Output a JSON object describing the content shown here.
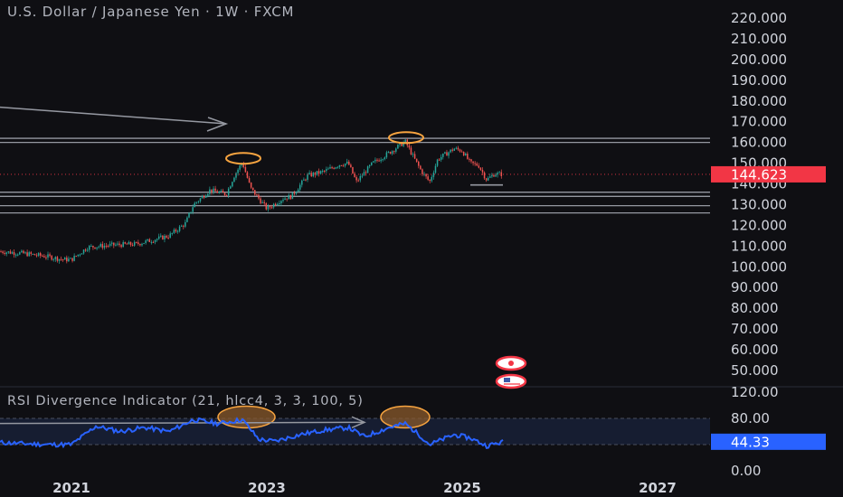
{
  "header": {
    "title": "U.S. Dollar / Japanese Yen · 1W · FXCM",
    "rsi_title": "RSI Divergence Indicator (21, hlcc4, 3, 3, 100, 5)"
  },
  "colors": {
    "background": "#0f0f13",
    "up_candle": "#26a69a",
    "down_candle": "#ef5350",
    "rsi_line": "#2962ff",
    "price_badge": "#f23645",
    "rsi_badge": "#2962ff",
    "highlight": "#f7a440",
    "level_line": "#9598a1"
  },
  "chart_data": [
    {
      "type": "candlestick",
      "series_name": "USDJPY",
      "y_ticks": [
        "220.000",
        "210.000",
        "200.000",
        "190.000",
        "180.000",
        "170.000",
        "160.000",
        "150.000",
        "140.000",
        "130.000",
        "120.000",
        "110.000",
        "100.000",
        "90.000",
        "80.000",
        "70.000",
        "60.000",
        "50.000"
      ],
      "ylim": [
        50,
        220
      ],
      "x_ticks": [
        "2021",
        "2023",
        "2025",
        "2027"
      ],
      "last_price_label": "144.623",
      "last_price": 144.623,
      "horizontal_levels": [
        162,
        160,
        136,
        134,
        129.5,
        126
      ],
      "support_segment": {
        "price": 139.5,
        "from": "2025-02",
        "to": "2025-06"
      },
      "highlight_peaks": [
        {
          "date": "2022-10",
          "price": 151.9
        },
        {
          "date": "2024-06",
          "price": 161.9
        }
      ],
      "trend_arrow": {
        "from_price": 177,
        "to_price": 169,
        "to_date": "2022-08"
      },
      "weekly_close_path": [
        {
          "date": "2020-01",
          "close": 109
        },
        {
          "date": "2020-04",
          "close": 107.5
        },
        {
          "date": "2020-07",
          "close": 106.5
        },
        {
          "date": "2020-10",
          "close": 105
        },
        {
          "date": "2020-12",
          "close": 103.5
        },
        {
          "date": "2021-01",
          "close": 103.5
        },
        {
          "date": "2021-03",
          "close": 109.5
        },
        {
          "date": "2021-06",
          "close": 110.5
        },
        {
          "date": "2021-09",
          "close": 111
        },
        {
          "date": "2021-12",
          "close": 114
        },
        {
          "date": "2022-01",
          "close": 115
        },
        {
          "date": "2022-03",
          "close": 121
        },
        {
          "date": "2022-04",
          "close": 130
        },
        {
          "date": "2022-06",
          "close": 137
        },
        {
          "date": "2022-08",
          "close": 135
        },
        {
          "date": "2022-09",
          "close": 144
        },
        {
          "date": "2022-10",
          "close": 150.5
        },
        {
          "date": "2022-11",
          "close": 138
        },
        {
          "date": "2022-12",
          "close": 133
        },
        {
          "date": "2023-01",
          "close": 128
        },
        {
          "date": "2023-03",
          "close": 133
        },
        {
          "date": "2023-04",
          "close": 134
        },
        {
          "date": "2023-06",
          "close": 144
        },
        {
          "date": "2023-08",
          "close": 146
        },
        {
          "date": "2023-10",
          "close": 149.5
        },
        {
          "date": "2023-11",
          "close": 150
        },
        {
          "date": "2023-12",
          "close": 141
        },
        {
          "date": "2024-02",
          "close": 150
        },
        {
          "date": "2024-04",
          "close": 155
        },
        {
          "date": "2024-06",
          "close": 160.5
        },
        {
          "date": "2024-07",
          "close": 153
        },
        {
          "date": "2024-08",
          "close": 146
        },
        {
          "date": "2024-09",
          "close": 141
        },
        {
          "date": "2024-10",
          "close": 152
        },
        {
          "date": "2024-12",
          "close": 157
        },
        {
          "date": "2025-01",
          "close": 156
        },
        {
          "date": "2025-02",
          "close": 150
        },
        {
          "date": "2025-03",
          "close": 149
        },
        {
          "date": "2025-04",
          "close": 142
        },
        {
          "date": "2025-05",
          "close": 145
        },
        {
          "date": "2025-06",
          "close": 144.6
        }
      ]
    },
    {
      "type": "line",
      "series_name": "RSI",
      "y_ticks": [
        "120.00",
        "80.00",
        "40.00",
        "0.00"
      ],
      "ylim": [
        0,
        120
      ],
      "last_value_label": "44.33",
      "last_value": 44.33,
      "band": [
        40,
        80
      ],
      "highlight_zones": [
        {
          "from": "2022-07",
          "to": "2023-02"
        },
        {
          "from": "2024-03",
          "to": "2024-09"
        }
      ],
      "trend_arrow": {
        "from": "2020-01",
        "to": "2024-01",
        "from_value": 72,
        "to_value": 74
      },
      "values": [
        {
          "date": "2020-01",
          "v": 45
        },
        {
          "date": "2020-06",
          "v": 42
        },
        {
          "date": "2020-10",
          "v": 40
        },
        {
          "date": "2021-01",
          "v": 40
        },
        {
          "date": "2021-04",
          "v": 68
        },
        {
          "date": "2021-07",
          "v": 60
        },
        {
          "date": "2021-10",
          "v": 66
        },
        {
          "date": "2022-01",
          "v": 60
        },
        {
          "date": "2022-04",
          "v": 78
        },
        {
          "date": "2022-07",
          "v": 72
        },
        {
          "date": "2022-10",
          "v": 78
        },
        {
          "date": "2022-12",
          "v": 48
        },
        {
          "date": "2023-02",
          "v": 45
        },
        {
          "date": "2023-05",
          "v": 55
        },
        {
          "date": "2023-08",
          "v": 62
        },
        {
          "date": "2023-11",
          "v": 66
        },
        {
          "date": "2024-01",
          "v": 52
        },
        {
          "date": "2024-04",
          "v": 66
        },
        {
          "date": "2024-06",
          "v": 72
        },
        {
          "date": "2024-08",
          "v": 52
        },
        {
          "date": "2024-09",
          "v": 40
        },
        {
          "date": "2024-12",
          "v": 55
        },
        {
          "date": "2025-02",
          "v": 50
        },
        {
          "date": "2025-04",
          "v": 38
        },
        {
          "date": "2025-06",
          "v": 44
        }
      ]
    }
  ]
}
